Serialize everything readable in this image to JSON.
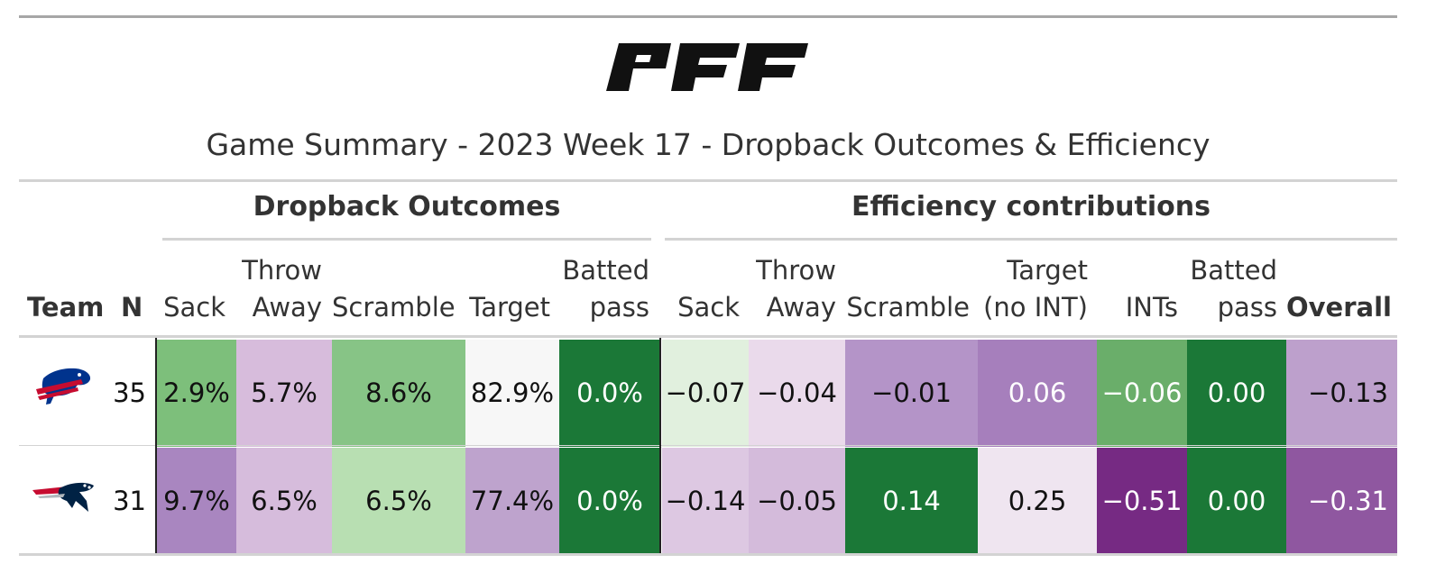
{
  "title": "Game Summary - 2023 Week 17 - Dropback Outcomes & Efficiency",
  "logo_text": "PFF",
  "spanners": {
    "dropback": "Dropback Outcomes",
    "efficiency": "Efficiency contributions"
  },
  "columns": {
    "team": "Team",
    "n": "N",
    "dropback": {
      "sack": "Sack",
      "throw_away_1": "Throw",
      "throw_away_2": "Away",
      "scramble": "Scramble",
      "target": "Target",
      "batted_1": "Batted",
      "batted_2": "pass"
    },
    "efficiency": {
      "sack": "Sack",
      "throw_away_1": "Throw",
      "throw_away_2": "Away",
      "scramble": "Scramble",
      "target_1": "Target",
      "target_2": "(no INT)",
      "ints": "INTs",
      "batted_1": "Batted",
      "batted_2": "pass",
      "overall": "Overall"
    }
  },
  "rows": [
    {
      "team_icon": "buffalo-bills-logo",
      "n": "35",
      "dropback": [
        "2.9%",
        "5.7%",
        "8.6%",
        "82.9%",
        "0.0%"
      ],
      "efficiency": [
        "−0.07",
        "−0.04",
        "−0.01",
        "0.06",
        "−0.06",
        "0.00",
        "−0.13"
      ],
      "dropback_colors": [
        "#7dbf7b",
        "#d7bcdc",
        "#87c486",
        "#f7f7f7",
        "#1b7837"
      ],
      "efficiency_colors": [
        "#e1f0de",
        "#eadaeb",
        "#b494c8",
        "#a67fbc",
        "#6aae6a",
        "#1b7837",
        "#bda0cc"
      ]
    },
    {
      "team_icon": "new-england-patriots-logo",
      "n": "31",
      "dropback": [
        "9.7%",
        "6.5%",
        "6.5%",
        "77.4%",
        "0.0%"
      ],
      "efficiency": [
        "−0.14",
        "−0.05",
        "0.14",
        "0.25",
        "−0.51",
        "0.00",
        "−0.31"
      ],
      "dropback_colors": [
        "#a986c0",
        "#d6bcdc",
        "#b8dfb2",
        "#bea3cd",
        "#1b7837"
      ],
      "efficiency_colors": [
        "#ddc8e2",
        "#d4bbdb",
        "#1b7837",
        "#efe5f0",
        "#762a83",
        "#1b7837",
        "#8f57a0"
      ]
    }
  ],
  "colors": {
    "green_dark": "#1b7837",
    "purple_dark": "#762a83",
    "neutral": "#f7f7f7"
  }
}
